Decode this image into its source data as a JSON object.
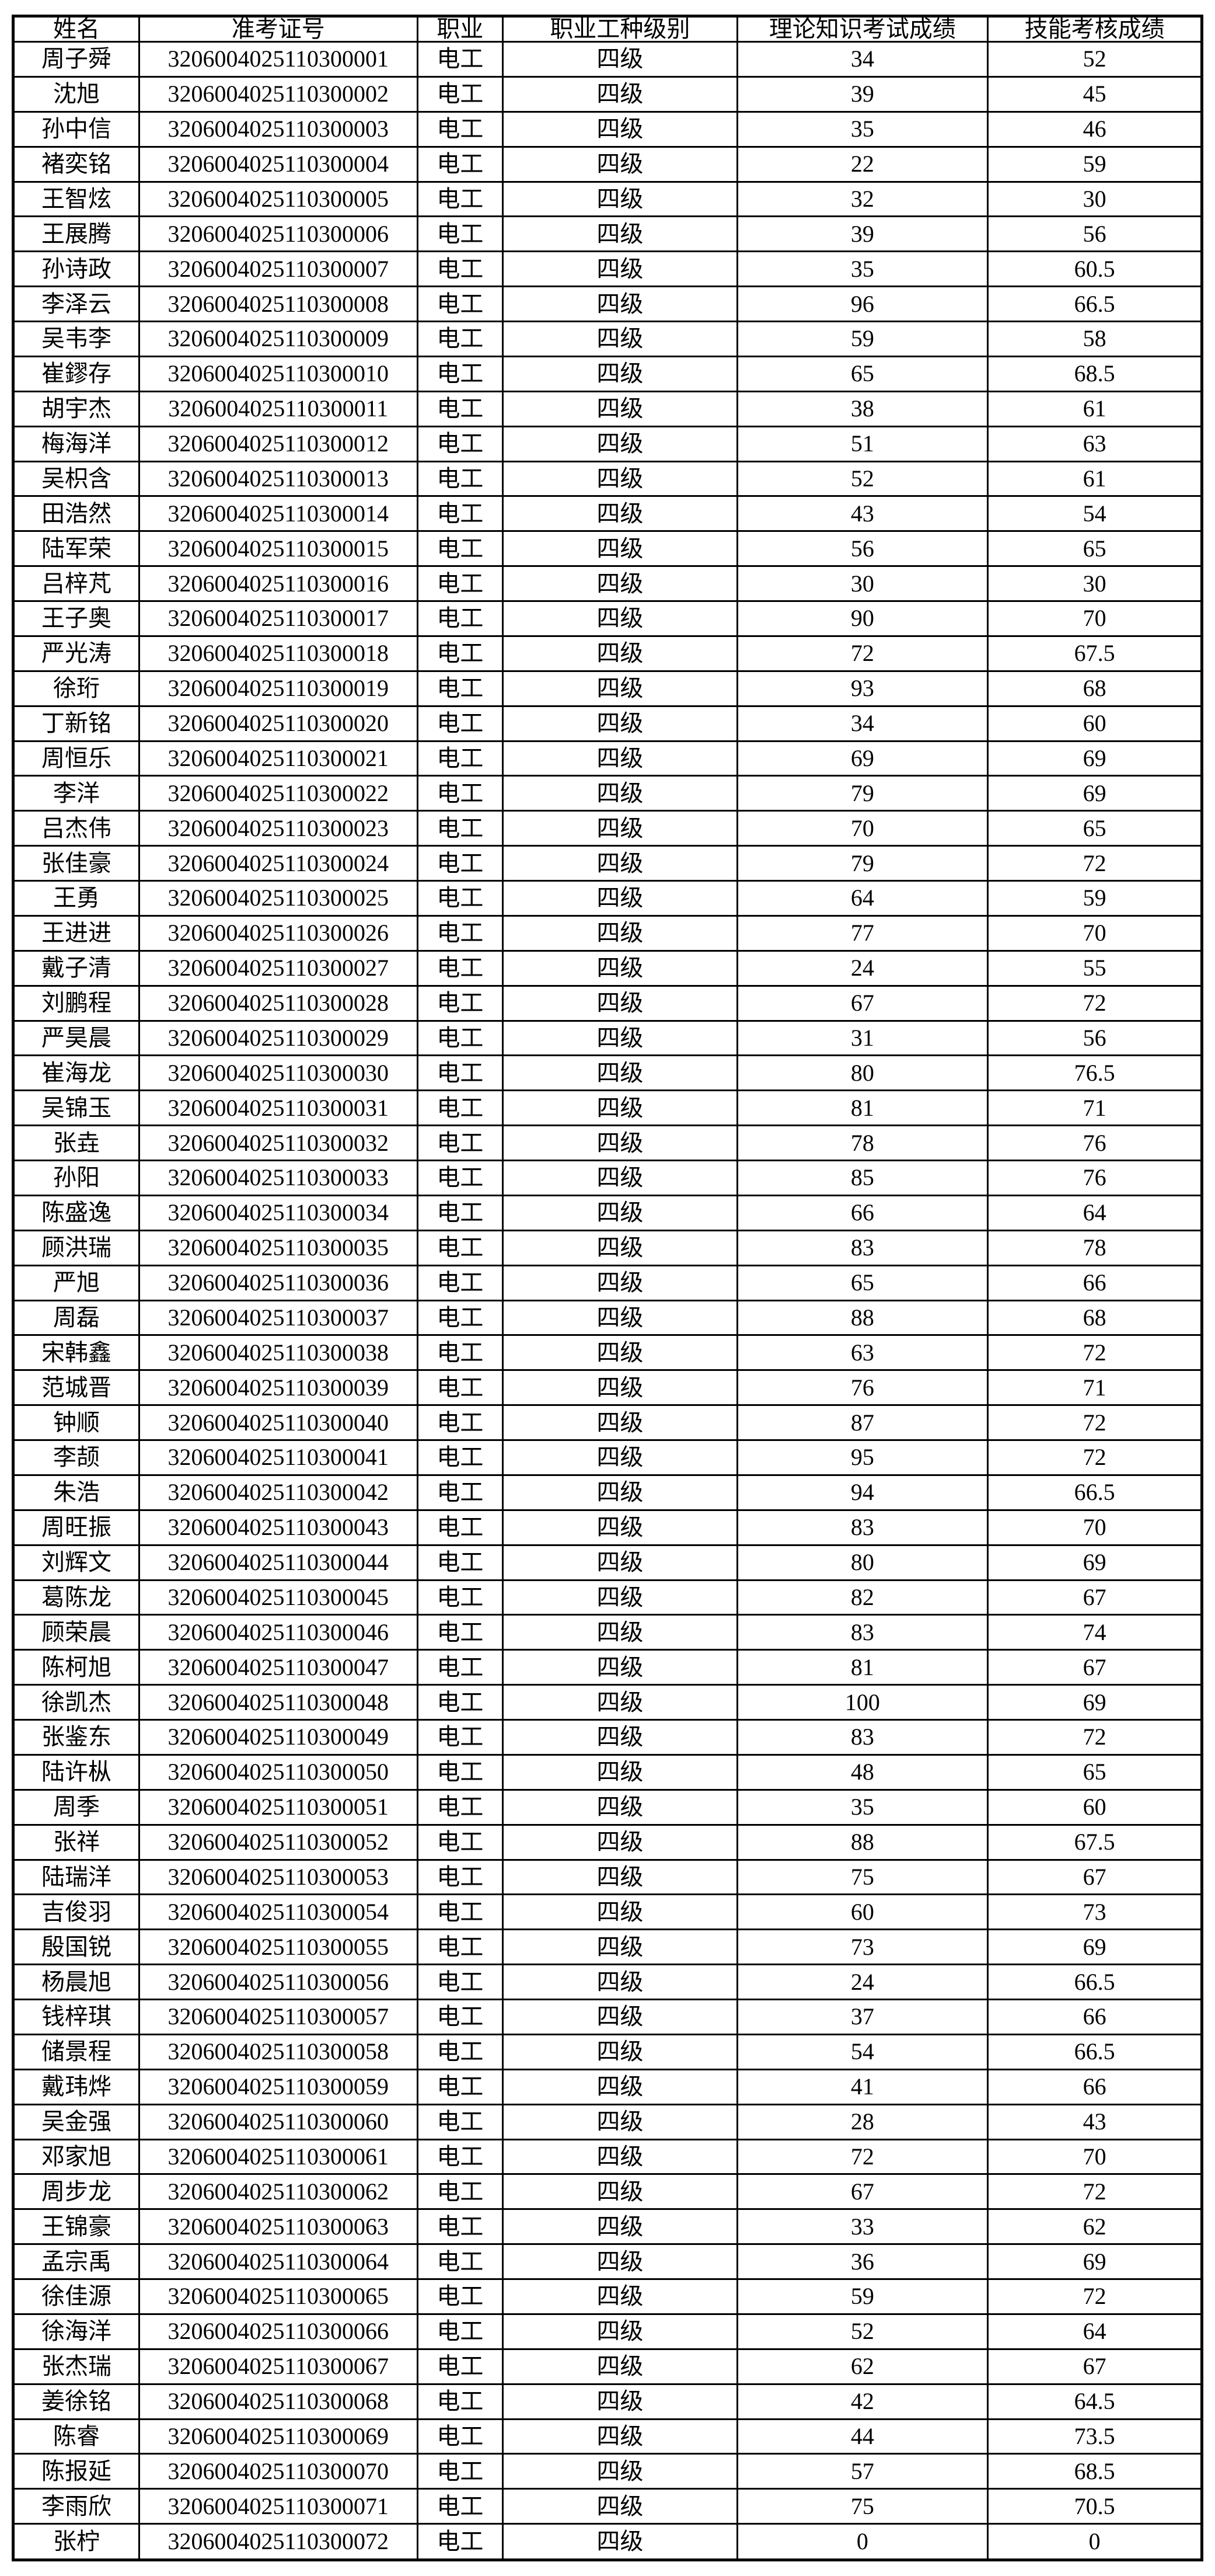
{
  "colors": {
    "background": "#ffffff",
    "border": "#000000",
    "text": "#000000"
  },
  "table": {
    "columns": [
      "姓名",
      "准考证号",
      "职业",
      "职业工种级别",
      "理论知识考试成绩",
      "技能考核成绩"
    ],
    "rows": [
      [
        "周子舜",
        "3206004025110300001",
        "电工",
        "四级",
        "34",
        "52"
      ],
      [
        "沈旭",
        "3206004025110300002",
        "电工",
        "四级",
        "39",
        "45"
      ],
      [
        "孙中信",
        "3206004025110300003",
        "电工",
        "四级",
        "35",
        "46"
      ],
      [
        "褚奕铭",
        "3206004025110300004",
        "电工",
        "四级",
        "22",
        "59"
      ],
      [
        "王智炫",
        "3206004025110300005",
        "电工",
        "四级",
        "32",
        "30"
      ],
      [
        "王展腾",
        "3206004025110300006",
        "电工",
        "四级",
        "39",
        "56"
      ],
      [
        "孙诗政",
        "3206004025110300007",
        "电工",
        "四级",
        "35",
        "60.5"
      ],
      [
        "李泽云",
        "3206004025110300008",
        "电工",
        "四级",
        "96",
        "66.5"
      ],
      [
        "吴韦李",
        "3206004025110300009",
        "电工",
        "四级",
        "59",
        "58"
      ],
      [
        "崔鏐存",
        "3206004025110300010",
        "电工",
        "四级",
        "65",
        "68.5"
      ],
      [
        "胡宇杰",
        "3206004025110300011",
        "电工",
        "四级",
        "38",
        "61"
      ],
      [
        "梅海洋",
        "3206004025110300012",
        "电工",
        "四级",
        "51",
        "63"
      ],
      [
        "吴枳含",
        "3206004025110300013",
        "电工",
        "四级",
        "52",
        "61"
      ],
      [
        "田浩然",
        "3206004025110300014",
        "电工",
        "四级",
        "43",
        "54"
      ],
      [
        "陆军荣",
        "3206004025110300015",
        "电工",
        "四级",
        "56",
        "65"
      ],
      [
        "吕梓芃",
        "3206004025110300016",
        "电工",
        "四级",
        "30",
        "30"
      ],
      [
        "王子奥",
        "3206004025110300017",
        "电工",
        "四级",
        "90",
        "70"
      ],
      [
        "严光涛",
        "3206004025110300018",
        "电工",
        "四级",
        "72",
        "67.5"
      ],
      [
        "徐珩",
        "3206004025110300019",
        "电工",
        "四级",
        "93",
        "68"
      ],
      [
        "丁新铭",
        "3206004025110300020",
        "电工",
        "四级",
        "34",
        "60"
      ],
      [
        "周恒乐",
        "3206004025110300021",
        "电工",
        "四级",
        "69",
        "69"
      ],
      [
        "李洋",
        "3206004025110300022",
        "电工",
        "四级",
        "79",
        "69"
      ],
      [
        "吕杰伟",
        "3206004025110300023",
        "电工",
        "四级",
        "70",
        "65"
      ],
      [
        "张佳豪",
        "3206004025110300024",
        "电工",
        "四级",
        "79",
        "72"
      ],
      [
        "王勇",
        "3206004025110300025",
        "电工",
        "四级",
        "64",
        "59"
      ],
      [
        "王进进",
        "3206004025110300026",
        "电工",
        "四级",
        "77",
        "70"
      ],
      [
        "戴子清",
        "3206004025110300027",
        "电工",
        "四级",
        "24",
        "55"
      ],
      [
        "刘鹏程",
        "3206004025110300028",
        "电工",
        "四级",
        "67",
        "72"
      ],
      [
        "严昊晨",
        "3206004025110300029",
        "电工",
        "四级",
        "31",
        "56"
      ],
      [
        "崔海龙",
        "3206004025110300030",
        "电工",
        "四级",
        "80",
        "76.5"
      ],
      [
        "吴锦玉",
        "3206004025110300031",
        "电工",
        "四级",
        "81",
        "71"
      ],
      [
        "张垚",
        "3206004025110300032",
        "电工",
        "四级",
        "78",
        "76"
      ],
      [
        "孙阳",
        "3206004025110300033",
        "电工",
        "四级",
        "85",
        "76"
      ],
      [
        "陈盛逸",
        "3206004025110300034",
        "电工",
        "四级",
        "66",
        "64"
      ],
      [
        "顾洪瑞",
        "3206004025110300035",
        "电工",
        "四级",
        "83",
        "78"
      ],
      [
        "严旭",
        "3206004025110300036",
        "电工",
        "四级",
        "65",
        "66"
      ],
      [
        "周磊",
        "3206004025110300037",
        "电工",
        "四级",
        "88",
        "68"
      ],
      [
        "宋韩鑫",
        "3206004025110300038",
        "电工",
        "四级",
        "63",
        "72"
      ],
      [
        "范城晋",
        "3206004025110300039",
        "电工",
        "四级",
        "76",
        "71"
      ],
      [
        "钟顺",
        "3206004025110300040",
        "电工",
        "四级",
        "87",
        "72"
      ],
      [
        "李颉",
        "3206004025110300041",
        "电工",
        "四级",
        "95",
        "72"
      ],
      [
        "朱浩",
        "3206004025110300042",
        "电工",
        "四级",
        "94",
        "66.5"
      ],
      [
        "周旺振",
        "3206004025110300043",
        "电工",
        "四级",
        "83",
        "70"
      ],
      [
        "刘辉文",
        "3206004025110300044",
        "电工",
        "四级",
        "80",
        "69"
      ],
      [
        "葛陈龙",
        "3206004025110300045",
        "电工",
        "四级",
        "82",
        "67"
      ],
      [
        "顾荣晨",
        "3206004025110300046",
        "电工",
        "四级",
        "83",
        "74"
      ],
      [
        "陈柯旭",
        "3206004025110300047",
        "电工",
        "四级",
        "81",
        "67"
      ],
      [
        "徐凯杰",
        "3206004025110300048",
        "电工",
        "四级",
        "100",
        "69"
      ],
      [
        "张鉴东",
        "3206004025110300049",
        "电工",
        "四级",
        "83",
        "72"
      ],
      [
        "陆许枞",
        "3206004025110300050",
        "电工",
        "四级",
        "48",
        "65"
      ],
      [
        "周季",
        "3206004025110300051",
        "电工",
        "四级",
        "35",
        "60"
      ],
      [
        "张祥",
        "3206004025110300052",
        "电工",
        "四级",
        "88",
        "67.5"
      ],
      [
        "陆瑞洋",
        "3206004025110300053",
        "电工",
        "四级",
        "75",
        "67"
      ],
      [
        "吉俊羽",
        "3206004025110300054",
        "电工",
        "四级",
        "60",
        "73"
      ],
      [
        "殷国锐",
        "3206004025110300055",
        "电工",
        "四级",
        "73",
        "69"
      ],
      [
        "杨晨旭",
        "3206004025110300056",
        "电工",
        "四级",
        "24",
        "66.5"
      ],
      [
        "钱梓琪",
        "3206004025110300057",
        "电工",
        "四级",
        "37",
        "66"
      ],
      [
        "储景程",
        "3206004025110300058",
        "电工",
        "四级",
        "54",
        "66.5"
      ],
      [
        "戴玮烨",
        "3206004025110300059",
        "电工",
        "四级",
        "41",
        "66"
      ],
      [
        "吴金强",
        "3206004025110300060",
        "电工",
        "四级",
        "28",
        "43"
      ],
      [
        "邓家旭",
        "3206004025110300061",
        "电工",
        "四级",
        "72",
        "70"
      ],
      [
        "周步龙",
        "3206004025110300062",
        "电工",
        "四级",
        "67",
        "72"
      ],
      [
        "王锦豪",
        "3206004025110300063",
        "电工",
        "四级",
        "33",
        "62"
      ],
      [
        "孟宗禹",
        "3206004025110300064",
        "电工",
        "四级",
        "36",
        "69"
      ],
      [
        "徐佳源",
        "3206004025110300065",
        "电工",
        "四级",
        "59",
        "72"
      ],
      [
        "徐海洋",
        "3206004025110300066",
        "电工",
        "四级",
        "52",
        "64"
      ],
      [
        "张杰瑞",
        "3206004025110300067",
        "电工",
        "四级",
        "62",
        "67"
      ],
      [
        "姜徐铭",
        "3206004025110300068",
        "电工",
        "四级",
        "42",
        "64.5"
      ],
      [
        "陈睿",
        "3206004025110300069",
        "电工",
        "四级",
        "44",
        "73.5"
      ],
      [
        "陈报延",
        "3206004025110300070",
        "电工",
        "四级",
        "57",
        "68.5"
      ],
      [
        "李雨欣",
        "3206004025110300071",
        "电工",
        "四级",
        "75",
        "70.5"
      ],
      [
        "张柠",
        "3206004025110300072",
        "电工",
        "四级",
        "0",
        "0"
      ]
    ]
  }
}
